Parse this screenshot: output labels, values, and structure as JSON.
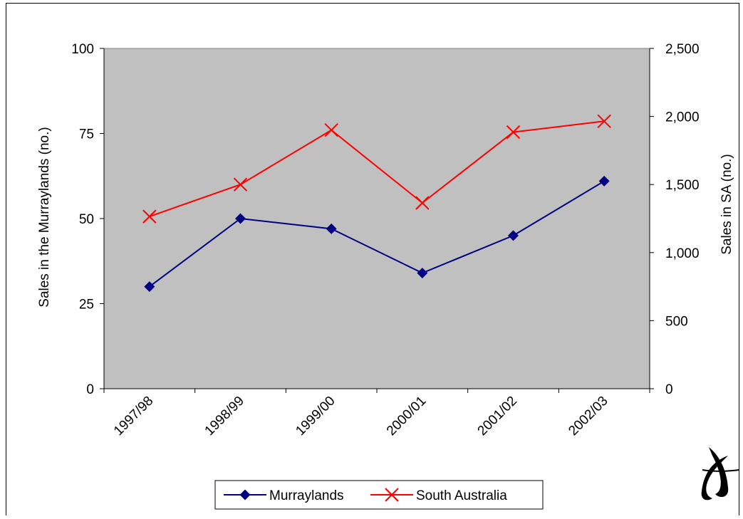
{
  "chart_data": {
    "type": "line",
    "categories": [
      "1997/98",
      "1998/99",
      "1999/00",
      "2000/01",
      "2001/02",
      "2002/03"
    ],
    "y_left": {
      "label": "Sales in the Murraylands  (no.)",
      "ylim": [
        0,
        100
      ],
      "ticks": [
        0,
        25,
        50,
        75,
        100
      ],
      "tick_labels": [
        "0",
        "25",
        "50",
        "75",
        "100"
      ]
    },
    "y_right": {
      "label": "Sales in SA (no.)",
      "ylim": [
        0,
        2500
      ],
      "ticks": [
        0,
        500,
        1000,
        1500,
        2000,
        2500
      ],
      "tick_labels": [
        "0",
        "500",
        "1,000",
        "1,500",
        "2,000",
        "2,500"
      ]
    },
    "series": [
      {
        "name": "Murraylands",
        "axis": "left",
        "marker": "diamond",
        "color": "#000080",
        "values": [
          30,
          50,
          47,
          34,
          45,
          61
        ]
      },
      {
        "name": "South Australia",
        "axis": "right",
        "marker": "x",
        "color": "#ff0000",
        "values": [
          1265,
          1500,
          1900,
          1365,
          1885,
          1965
        ]
      }
    ],
    "plot_background": "#c0c0c0",
    "grid": false,
    "legend_position": "bottom"
  }
}
